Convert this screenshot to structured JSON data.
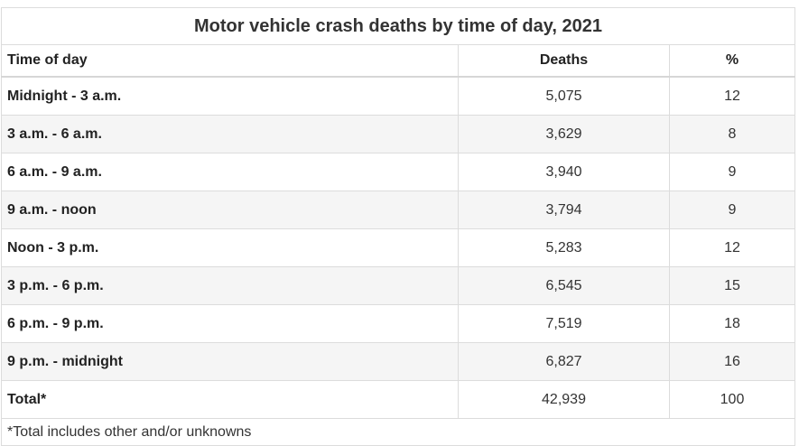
{
  "title": "Motor vehicle crash deaths by time of day, 2021",
  "columns": [
    "Time of day",
    "Deaths",
    "%"
  ],
  "rows": [
    {
      "label": "Midnight - 3 a.m.",
      "deaths": "5,075",
      "pct": "12"
    },
    {
      "label": "3 a.m. - 6 a.m.",
      "deaths": "3,629",
      "pct": "8"
    },
    {
      "label": "6 a.m. - 9 a.m.",
      "deaths": "3,940",
      "pct": "9"
    },
    {
      "label": "9 a.m. - noon",
      "deaths": "3,794",
      "pct": "9"
    },
    {
      "label": "Noon - 3 p.m.",
      "deaths": "5,283",
      "pct": "12"
    },
    {
      "label": "3 p.m. - 6 p.m.",
      "deaths": "6,545",
      "pct": "15"
    },
    {
      "label": "6 p.m. - 9 p.m.",
      "deaths": "7,519",
      "pct": "18"
    },
    {
      "label": "9 p.m. - midnight",
      "deaths": "6,827",
      "pct": "16"
    }
  ],
  "total": {
    "label": "Total*",
    "deaths": "42,939",
    "pct": "100"
  },
  "footnote": "*Total includes other and/or unknowns"
}
